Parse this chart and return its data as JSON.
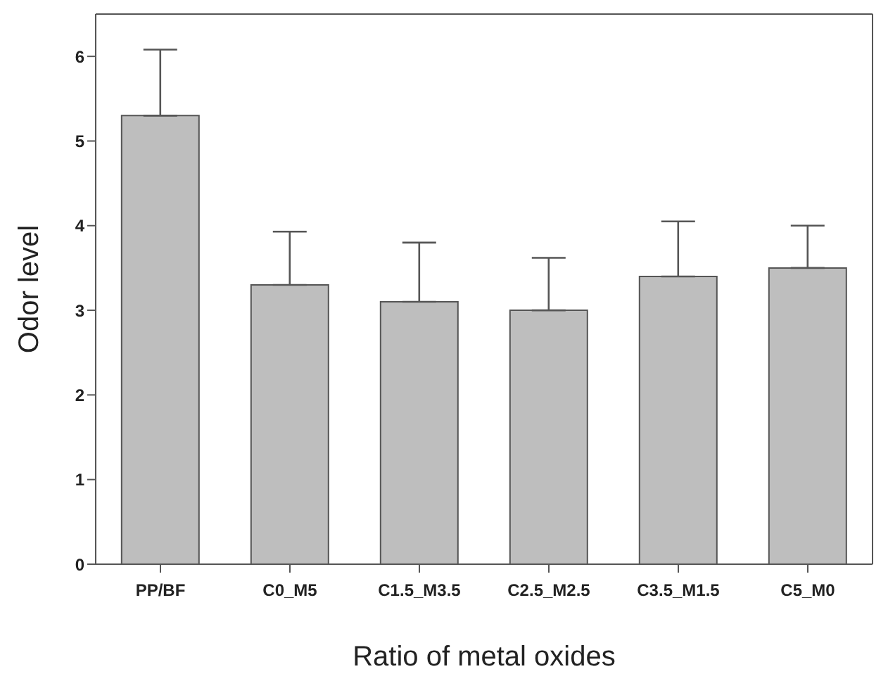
{
  "chart_data": {
    "type": "bar",
    "xlabel": "Ratio of metal oxides",
    "ylabel": "Odor level",
    "categories": [
      "PP/BF",
      "C0_M5",
      "C1.5_M3.5",
      "C2.5_M2.5",
      "C3.5_M1.5",
      "C5_M0"
    ],
    "values": [
      5.3,
      3.3,
      3.1,
      3.0,
      3.4,
      3.5
    ],
    "errors": [
      [
        5.3,
        6.08
      ],
      [
        3.3,
        3.93
      ],
      [
        3.1,
        3.8
      ],
      [
        3.0,
        3.62
      ],
      [
        3.4,
        4.05
      ],
      [
        3.5,
        4.0
      ]
    ],
    "color": "#bebebe",
    "ylim": [
      0,
      6.5
    ],
    "yticks": [
      0,
      1,
      2,
      3,
      4,
      5,
      6
    ],
    "grid": false,
    "legend": false
  }
}
